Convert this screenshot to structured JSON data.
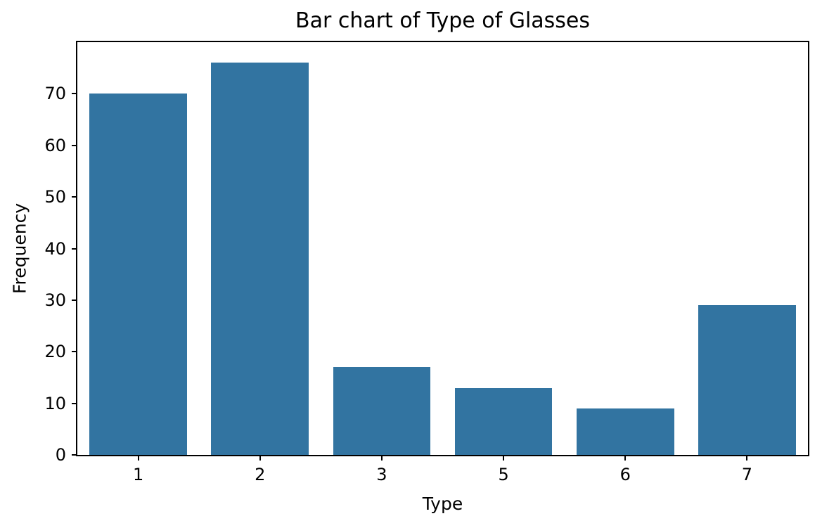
{
  "figure": {
    "background_color": "#ffffff",
    "axis_color": "#000000",
    "text_color": "#000000"
  },
  "chart_data": {
    "type": "bar",
    "title": "Bar chart of Type of Glasses",
    "xlabel": "Type",
    "ylabel": "Frequency",
    "categories": [
      "1",
      "2",
      "3",
      "5",
      "6",
      "7"
    ],
    "values": [
      70,
      76,
      17,
      13,
      9,
      29
    ],
    "yticks": [
      0,
      10,
      20,
      30,
      40,
      50,
      60,
      70
    ],
    "ylim": [
      0,
      80
    ],
    "bar_color": "#3274a1",
    "bar_width_fraction": 0.8,
    "grid": false,
    "legend": "none"
  }
}
